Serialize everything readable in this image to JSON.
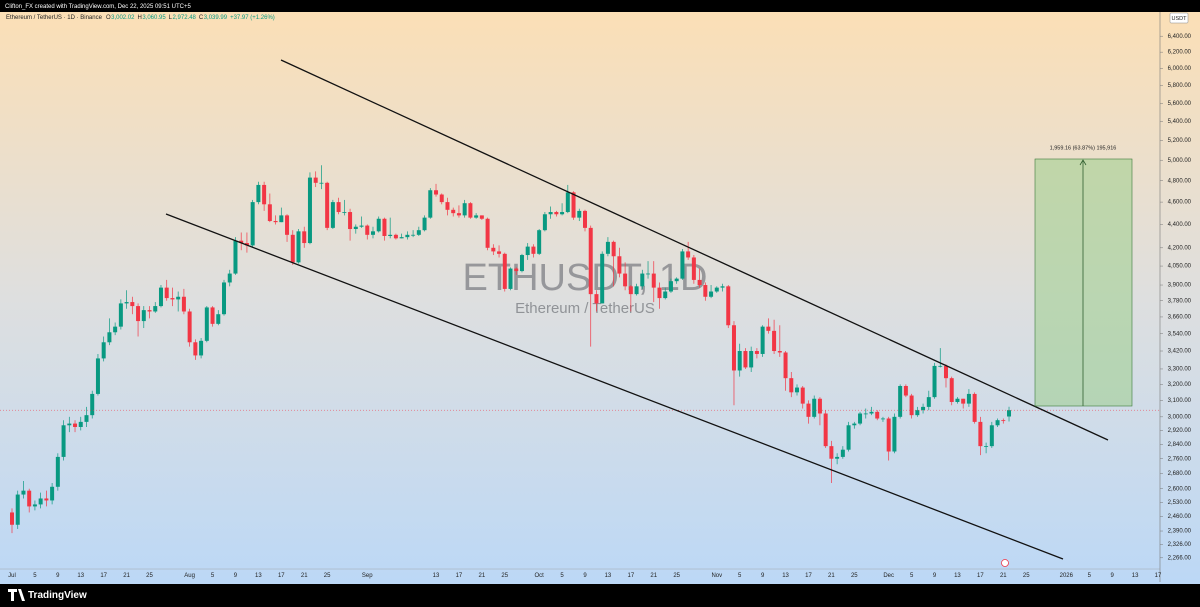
{
  "chart_data": {
    "type": "candlestick",
    "header": "Clifton_FX created with TradingView.com, Dec 22, 2025 09:51 UTC+5",
    "symbol_line": "Ethereum / TetherUS · 1D · Binance",
    "ohlc_legend": [
      {
        "key": "O",
        "value": "3,002.02"
      },
      {
        "key": "H",
        "value": "3,060.95"
      },
      {
        "key": "L",
        "value": "2,972.48"
      },
      {
        "key": "C",
        "value": "3,039.99"
      }
    ],
    "change": "+37.97 (+1.26%)",
    "watermark": "ETHUSDT, 1D",
    "watermark_sub": "Ethereum / TetherUS",
    "currency": "USDT",
    "measure_label": "1,959.16 (63.87%) 195,916",
    "brand": "TradingView",
    "log_scale": true,
    "grid": false,
    "colors": {
      "up": "#089981",
      "down": "#f23645",
      "last": "#f23645"
    },
    "ylim": [
      2168,
      6716
    ],
    "yticks": [
      {
        "value": 6400,
        "label": "6,400.00"
      },
      {
        "value": 6200,
        "label": "6,200.00"
      },
      {
        "value": 6000,
        "label": "6,000.00"
      },
      {
        "value": 5800,
        "label": "5,800.00"
      },
      {
        "value": 5600,
        "label": "5,600.00"
      },
      {
        "value": 5400,
        "label": "5,400.00"
      },
      {
        "value": 5200,
        "label": "5,200.00"
      },
      {
        "value": 5000,
        "label": "5,000.00"
      },
      {
        "value": 4800,
        "label": "4,800.00"
      },
      {
        "value": 4600,
        "label": "4,600.00"
      },
      {
        "value": 4400,
        "label": "4,400.00"
      },
      {
        "value": 4200,
        "label": "4,200.00"
      },
      {
        "value": 4050,
        "label": "4,050.00"
      },
      {
        "value": 3900,
        "label": "3,900.00"
      },
      {
        "value": 3780,
        "label": "3,780.00"
      },
      {
        "value": 3660,
        "label": "3,660.00"
      },
      {
        "value": 3540,
        "label": "3,540.00"
      },
      {
        "value": 3420,
        "label": "3,420.00"
      },
      {
        "value": 3300,
        "label": "3,300.00"
      },
      {
        "value": 3200,
        "label": "3,200.00"
      },
      {
        "value": 3100,
        "label": "3,100.00"
      },
      {
        "value": 3000,
        "label": "3,000.00"
      },
      {
        "value": 2920,
        "label": "2,920.00"
      },
      {
        "value": 2840,
        "label": "2,840.00"
      },
      {
        "value": 2760,
        "label": "2,760.00"
      },
      {
        "value": 2680,
        "label": "2,680.00"
      },
      {
        "value": 2600,
        "label": "2,600.00"
      },
      {
        "value": 2530,
        "label": "2,530.00"
      },
      {
        "value": 2460,
        "label": "2,460.00"
      },
      {
        "value": 2390,
        "label": "2,390.00"
      },
      {
        "value": 2326,
        "label": "2,326.00"
      },
      {
        "value": 2266,
        "label": "2,266.00"
      }
    ],
    "categories": [
      "Jul",
      null,
      null,
      null,
      "5",
      null,
      null,
      null,
      "9",
      null,
      null,
      null,
      "13",
      null,
      null,
      null,
      "17",
      null,
      null,
      null,
      "21",
      null,
      null,
      null,
      "25",
      null,
      null,
      null,
      null,
      null,
      null,
      "Aug",
      null,
      null,
      null,
      "5",
      null,
      null,
      null,
      "9",
      null,
      null,
      null,
      "13",
      null,
      null,
      null,
      "17",
      null,
      null,
      null,
      "21",
      null,
      null,
      null,
      "25",
      null,
      null,
      null,
      null,
      null,
      null,
      "Sep",
      null,
      null,
      null,
      null,
      null,
      null,
      null,
      null,
      null,
      null,
      null,
      "13",
      null,
      null,
      null,
      "17",
      null,
      null,
      null,
      "21",
      null,
      null,
      null,
      "25",
      null,
      null,
      null,
      null,
      null,
      "Oct",
      null,
      null,
      null,
      "5",
      null,
      null,
      null,
      "9",
      null,
      null,
      null,
      "13",
      null,
      null,
      null,
      "17",
      null,
      null,
      null,
      "21",
      null,
      null,
      null,
      "25",
      null,
      null,
      null,
      null,
      null,
      null,
      "Nov",
      null,
      null,
      null,
      "5",
      null,
      null,
      null,
      "9",
      null,
      null,
      null,
      "13",
      null,
      null,
      null,
      "17",
      null,
      null,
      null,
      "21",
      null,
      null,
      null,
      "25",
      null,
      null,
      null,
      null,
      null,
      "Dec",
      null,
      null,
      null,
      "5",
      null,
      null,
      null,
      "9",
      null,
      null,
      null,
      "13",
      null,
      null,
      null,
      "17",
      null,
      null,
      null,
      "21",
      null,
      null,
      null,
      "25",
      null,
      null,
      null,
      null,
      null,
      null,
      "2026",
      null,
      null,
      null,
      "5",
      null,
      null,
      null,
      "9",
      null,
      null,
      null,
      "13",
      null,
      null,
      null,
      "17"
    ],
    "open": [
      2480,
      2420,
      2570,
      2590,
      2510,
      2520,
      2550,
      2540,
      2610,
      2770,
      2950,
      2960,
      2940,
      2970,
      3010,
      3140,
      3370,
      3480,
      3550,
      3590,
      3760,
      3770,
      3740,
      3630,
      3710,
      3700,
      3740,
      3880,
      3800,
      3790,
      3810,
      3700,
      3480,
      3390,
      3490,
      3730,
      3610,
      3680,
      3920,
      3990,
      4260,
      4240,
      4220,
      4600,
      4760,
      4580,
      4430,
      4420,
      4480,
      4310,
      4080,
      4340,
      4240,
      4830,
      4780,
      4780,
      4370,
      4600,
      4510,
      4510,
      4360,
      4380,
      4390,
      4310,
      4340,
      4450,
      4300,
      4310,
      4280,
      4290,
      4310,
      4310,
      4350,
      4460,
      4710,
      4670,
      4600,
      4530,
      4500,
      4480,
      4590,
      4460,
      4480,
      4450,
      4200,
      4170,
      4150,
      3870,
      4030,
      4010,
      4140,
      4210,
      4150,
      4350,
      4490,
      4510,
      4490,
      4510,
      4690,
      4460,
      4520,
      4370,
      3830,
      3760,
      4150,
      4250,
      4130,
      3990,
      3890,
      3830,
      3890,
      3990,
      3990,
      3880,
      3800,
      3850,
      3930,
      3950,
      4170,
      4120,
      3940,
      3900,
      3810,
      3850,
      3880,
      3890,
      3600,
      3290,
      3420,
      3310,
      3420,
      3400,
      3590,
      3560,
      3420,
      3410,
      3240,
      3150,
      3180,
      3080,
      3000,
      3110,
      3020,
      2830,
      2760,
      2770,
      2810,
      2950,
      2960,
      3020,
      3020,
      3030,
      2990,
      2990,
      2800,
      3000,
      3190,
      3130,
      3010,
      3040,
      3060,
      3120,
      3320,
      3320,
      3240,
      3090,
      3110,
      3080,
      3140,
      2970,
      2830,
      2830,
      2950,
      2980,
      3002.02,
      null,
      null,
      null,
      null,
      null,
      null,
      null,
      null,
      null,
      null,
      null,
      null,
      null,
      null,
      null,
      null,
      null,
      null,
      null,
      null,
      null,
      null,
      null,
      null,
      null,
      null
    ],
    "high": [
      2500,
      2590,
      2640,
      2600,
      2540,
      2580,
      2590,
      2630,
      2790,
      2980,
      3000,
      2980,
      3000,
      3060,
      3160,
      3400,
      3520,
      3650,
      3620,
      3790,
      3860,
      3810,
      3760,
      3740,
      3740,
      3770,
      3900,
      3940,
      3880,
      3850,
      3870,
      3720,
      3500,
      3510,
      3740,
      3740,
      3710,
      3940,
      4020,
      4290,
      4330,
      4330,
      4620,
      4790,
      4790,
      4680,
      4480,
      4550,
      4490,
      4350,
      4360,
      4380,
      4880,
      4890,
      4950,
      4790,
      4620,
      4640,
      4620,
      4540,
      4400,
      4470,
      4400,
      4380,
      4470,
      4460,
      4460,
      4320,
      4320,
      4340,
      4350,
      4380,
      4480,
      4730,
      4770,
      4680,
      4640,
      4550,
      4570,
      4620,
      4600,
      4500,
      4480,
      4460,
      4230,
      4220,
      4160,
      4040,
      4040,
      4150,
      4240,
      4230,
      4360,
      4510,
      4560,
      4520,
      4590,
      4760,
      4700,
      4540,
      4530,
      4390,
      3860,
      4170,
      4290,
      4260,
      4200,
      4080,
      3900,
      3910,
      4020,
      4090,
      4090,
      3920,
      3880,
      3950,
      3960,
      4190,
      4250,
      4140,
      4030,
      3920,
      3900,
      3890,
      3910,
      3900,
      3630,
      3470,
      3440,
      3450,
      3440,
      3600,
      3650,
      3640,
      3600,
      3420,
      3280,
      3200,
      3190,
      3100,
      3130,
      3120,
      3040,
      2860,
      2790,
      2830,
      2970,
      2970,
      3030,
      3050,
      3060,
      3040,
      3000,
      3000,
      3020,
      3200,
      3200,
      3140,
      3060,
      3080,
      3160,
      3340,
      3440,
      3330,
      3250,
      3120,
      3110,
      3170,
      3150,
      3000,
      2850,
      2970,
      2990,
      2990,
      3060.95,
      null,
      null,
      null,
      null,
      null,
      null,
      null,
      null,
      null,
      null,
      null,
      null,
      null,
      null,
      null,
      null,
      null,
      null,
      null,
      null,
      null,
      null,
      null,
      null,
      null,
      null
    ],
    "low": [
      2380,
      2400,
      2550,
      2480,
      2490,
      2500,
      2510,
      2520,
      2590,
      2750,
      2910,
      2910,
      2920,
      2940,
      2990,
      3130,
      3350,
      3460,
      3530,
      3570,
      3720,
      3680,
      3520,
      3580,
      3650,
      3690,
      3730,
      3780,
      3740,
      3700,
      3680,
      3450,
      3360,
      3370,
      3480,
      3590,
      3600,
      3670,
      3890,
      3980,
      4180,
      4160,
      4200,
      4580,
      4520,
      4420,
      4400,
      4420,
      4250,
      4060,
      4070,
      4200,
      4230,
      4740,
      4720,
      4350,
      4360,
      4490,
      4480,
      4260,
      4320,
      4370,
      4270,
      4280,
      4330,
      4260,
      4280,
      4270,
      4280,
      4270,
      4290,
      4300,
      4340,
      4450,
      4650,
      4580,
      4480,
      4470,
      4460,
      4460,
      4450,
      4450,
      4440,
      4180,
      4140,
      4120,
      3850,
      3860,
      3980,
      4000,
      4100,
      4120,
      4140,
      4340,
      4450,
      4470,
      4480,
      4500,
      4440,
      4430,
      4340,
      3450,
      3700,
      3760,
      4130,
      3890,
      3960,
      3860,
      3700,
      3820,
      3870,
      3950,
      3770,
      3720,
      3790,
      3840,
      3910,
      3940,
      4100,
      3910,
      3880,
      3780,
      3800,
      3840,
      3850,
      3580,
      3070,
      3250,
      3300,
      3280,
      3370,
      3380,
      3540,
      3400,
      3380,
      3160,
      3120,
      3130,
      3050,
      2960,
      2990,
      2950,
      2820,
      2630,
      2730,
      2760,
      2800,
      2930,
      2950,
      2990,
      3010,
      2980,
      2970,
      2750,
      2790,
      2990,
      3120,
      2990,
      3000,
      3020,
      3040,
      3110,
      3310,
      3180,
      3070,
      3080,
      3050,
      3060,
      2960,
      2780,
      2790,
      2820,
      2940,
      2960,
      2972.48,
      null,
      null,
      null,
      null,
      null,
      null,
      null,
      null,
      null,
      null,
      null,
      null,
      null,
      null,
      null,
      null,
      null,
      null,
      null,
      null,
      null,
      null,
      null,
      null,
      null,
      null
    ],
    "close": [
      2420,
      2570,
      2590,
      2510,
      2520,
      2550,
      2540,
      2610,
      2770,
      2950,
      2960,
      2940,
      2970,
      3010,
      3140,
      3370,
      3480,
      3550,
      3590,
      3760,
      3770,
      3740,
      3630,
      3710,
      3700,
      3740,
      3880,
      3800,
      3790,
      3810,
      3700,
      3480,
      3390,
      3490,
      3730,
      3610,
      3680,
      3920,
      3990,
      4260,
      4240,
      4220,
      4600,
      4760,
      4580,
      4430,
      4420,
      4480,
      4310,
      4080,
      4340,
      4240,
      4830,
      4780,
      4780,
      4370,
      4600,
      4510,
      4510,
      4360,
      4380,
      4390,
      4310,
      4340,
      4450,
      4300,
      4310,
      4280,
      4290,
      4310,
      4310,
      4350,
      4460,
      4710,
      4670,
      4600,
      4530,
      4500,
      4480,
      4590,
      4460,
      4480,
      4450,
      4200,
      4170,
      4150,
      3870,
      4030,
      4010,
      4140,
      4210,
      4150,
      4350,
      4490,
      4510,
      4490,
      4510,
      4690,
      4460,
      4520,
      4370,
      3830,
      3760,
      4150,
      4250,
      4130,
      3990,
      3890,
      3830,
      3890,
      3990,
      3990,
      3880,
      3800,
      3850,
      3930,
      3950,
      4170,
      4120,
      3940,
      3900,
      3810,
      3850,
      3880,
      3890,
      3600,
      3290,
      3420,
      3310,
      3420,
      3400,
      3590,
      3560,
      3420,
      3410,
      3240,
      3150,
      3180,
      3080,
      3000,
      3110,
      3020,
      2830,
      2760,
      2770,
      2810,
      2950,
      2960,
      3020,
      3020,
      3030,
      2990,
      2990,
      2800,
      3000,
      3190,
      3130,
      3010,
      3040,
      3060,
      3120,
      3320,
      3320,
      3240,
      3090,
      3110,
      3080,
      3140,
      2970,
      2830,
      2830,
      2950,
      2980,
      2975,
      3039.99,
      null,
      null,
      null,
      null,
      null,
      null,
      null,
      null,
      null,
      null,
      null,
      null,
      null,
      null,
      null,
      null,
      null,
      null,
      null,
      null,
      null,
      null,
      null,
      null,
      null,
      null
    ]
  }
}
